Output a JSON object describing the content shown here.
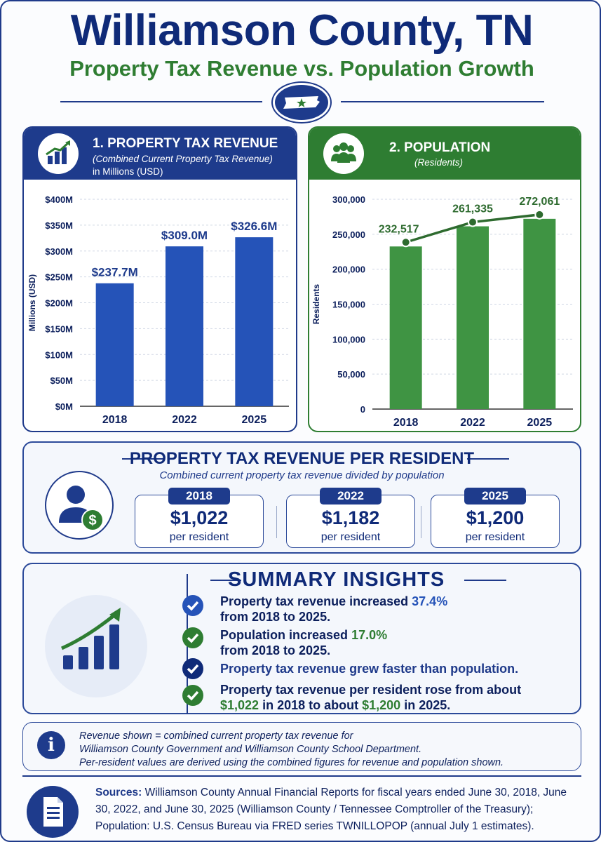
{
  "header": {
    "title": "Williamson County, TN",
    "subtitle": "Property Tax Revenue vs. Population Growth"
  },
  "chart_data": [
    {
      "type": "bar",
      "panel_title": "1. PROPERTY TAX REVENUE",
      "panel_subtitle": "(Combined Current Property Tax Revenue)",
      "panel_units": "in Millions (USD)",
      "ylabel": "Millions (USD)",
      "categories": [
        "2018",
        "2022",
        "2025"
      ],
      "values": [
        237.7,
        309.0,
        326.6
      ],
      "data_labels": [
        "$237.7M",
        "$309.0M",
        "$326.6M"
      ],
      "ylim": [
        0,
        400
      ],
      "y_ticks": [
        0,
        50,
        100,
        150,
        200,
        250,
        300,
        350,
        400
      ],
      "y_tick_labels": [
        "$0M",
        "$50M",
        "$100M",
        "$150M",
        "$200M",
        "$250M",
        "$300M",
        "$350M",
        "$400M"
      ],
      "grid": true,
      "color": "#2553b8"
    },
    {
      "type": "bar",
      "panel_title": "2. POPULATION",
      "panel_subtitle": "(Residents)",
      "ylabel": "Residents",
      "categories": [
        "2018",
        "2022",
        "2025"
      ],
      "values": [
        232517,
        261335,
        272061
      ],
      "data_labels": [
        "232,517",
        "261,335",
        "272,061"
      ],
      "ylim": [
        0,
        300000
      ],
      "y_ticks": [
        0,
        50000,
        100000,
        150000,
        200000,
        250000,
        300000
      ],
      "y_tick_labels": [
        "0",
        "50,000",
        "100,000",
        "150,000",
        "200,000",
        "250,000",
        "300,000"
      ],
      "grid": true,
      "line_overlay": true,
      "color": "#3f9443"
    }
  ],
  "per_resident": {
    "title": "PROPERTY TAX REVENUE PER RESIDENT",
    "subtitle": "Combined current property tax revenue divided by population",
    "items": [
      {
        "year": "2018",
        "value": "$1,022",
        "unit": "per resident"
      },
      {
        "year": "2022",
        "value": "$1,182",
        "unit": "per resident"
      },
      {
        "year": "2025",
        "value": "$1,200",
        "unit": "per resident"
      }
    ]
  },
  "summary": {
    "title": "SUMMARY INSIGHTS",
    "insights": [
      {
        "text_a": "Property tax revenue increased",
        "highlight": "37.4%",
        "text_b": "from 2018 to 2025."
      },
      {
        "text_a": "Population increased",
        "highlight": "17.0%",
        "text_b": "from 2018 to 2025."
      },
      {
        "text_a": "Property tax revenue grew faster than population."
      },
      {
        "text_a": "Property tax revenue per resident rose from about",
        "hl1": "$1,022",
        "text_b": "in 2018 to about",
        "hl2": "$1,200",
        "text_c": "in 2025."
      }
    ]
  },
  "note": {
    "line1": "Revenue shown = combined current property tax revenue for",
    "line2": "Williamson County Government and Williamson County School Department.",
    "line3": "Per-resident values are derived using the combined figures for revenue and population shown."
  },
  "sources": {
    "label": "Sources:",
    "text": "Williamson County Annual Financial Reports for fiscal years ended June 30, 2018, June 30, 2022, and June 30, 2025 (Williamson County / Tennessee Comptroller of the Treasury); Population: U.S. Census Bureau via FRED series TWNILLOPOP (annual July 1 estimates)."
  },
  "colors": {
    "navy": "#1e3b8c",
    "green": "#2e7d32",
    "accent_blue": "#2553b8"
  }
}
